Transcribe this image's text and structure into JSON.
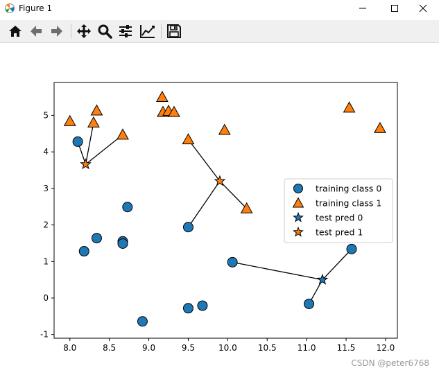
{
  "window": {
    "title": "Figure 1"
  },
  "toolbar": {
    "tools": [
      {
        "icon": "home-icon"
      },
      {
        "icon": "back-arrow-icon"
      },
      {
        "icon": "forward-arrow-icon"
      },
      {
        "icon": "pan-icon"
      },
      {
        "icon": "zoom-icon"
      },
      {
        "icon": "subplots-config-icon"
      },
      {
        "icon": "edit-axes-icon"
      },
      {
        "icon": "save-icon"
      }
    ]
  },
  "watermark": "CSDN @peter6768",
  "chart_data": {
    "type": "scatter",
    "xlim": [
      7.8,
      12.15
    ],
    "ylim": [
      -1.1,
      5.9
    ],
    "xticks": [
      "8.0",
      "8.5",
      "9.0",
      "9.5",
      "10.0",
      "10.5",
      "11.0",
      "11.5",
      "12.0"
    ],
    "yticks": [
      "-1",
      "0",
      "1",
      "2",
      "3",
      "4",
      "5"
    ],
    "grid": false,
    "legend": {
      "position": "center-right",
      "entries": [
        "training class 0",
        "training class 1",
        "test pred 0",
        "test pred 1"
      ]
    },
    "colors": {
      "class0": "#1f77b4",
      "class1": "#ff7f0e"
    },
    "series": [
      {
        "name": "training class 0",
        "marker": "circle",
        "color": "#1f77b4",
        "points": [
          [
            8.1,
            4.28
          ],
          [
            8.18,
            1.28
          ],
          [
            8.34,
            1.64
          ],
          [
            8.67,
            1.55
          ],
          [
            8.67,
            1.49
          ],
          [
            8.73,
            2.49
          ],
          [
            8.92,
            -0.64
          ],
          [
            9.5,
            1.94
          ],
          [
            9.5,
            -0.28
          ],
          [
            9.68,
            -0.21
          ],
          [
            10.06,
            0.98
          ],
          [
            11.03,
            -0.16
          ],
          [
            11.57,
            1.34
          ]
        ]
      },
      {
        "name": "training class 1",
        "marker": "triangle",
        "color": "#ff7f0e",
        "points": [
          [
            8.0,
            4.84
          ],
          [
            8.3,
            4.8
          ],
          [
            8.34,
            5.13
          ],
          [
            8.67,
            4.47
          ],
          [
            9.17,
            5.5
          ],
          [
            9.18,
            5.09
          ],
          [
            9.25,
            5.12
          ],
          [
            9.32,
            5.09
          ],
          [
            9.5,
            4.34
          ],
          [
            9.96,
            4.6
          ],
          [
            10.24,
            2.45
          ],
          [
            11.54,
            5.21
          ],
          [
            11.93,
            4.65
          ]
        ]
      },
      {
        "name": "test pred 0",
        "marker": "star",
        "color": "#1f77b4",
        "points": [
          [
            11.2,
            0.5
          ]
        ]
      },
      {
        "name": "test pred 1",
        "marker": "star",
        "color": "#ff7f0e",
        "points": [
          [
            8.2,
            3.66
          ],
          [
            9.9,
            3.2
          ]
        ]
      }
    ],
    "neighbor_lines": [
      [
        [
          8.2,
          3.66
        ],
        [
          8.1,
          4.28
        ]
      ],
      [
        [
          8.2,
          3.66
        ],
        [
          8.3,
          4.8
        ]
      ],
      [
        [
          8.2,
          3.66
        ],
        [
          8.67,
          4.47
        ]
      ],
      [
        [
          9.9,
          3.2
        ],
        [
          9.5,
          4.34
        ]
      ],
      [
        [
          9.9,
          3.2
        ],
        [
          10.24,
          2.45
        ]
      ],
      [
        [
          9.9,
          3.2
        ],
        [
          9.5,
          1.94
        ]
      ],
      [
        [
          11.2,
          0.5
        ],
        [
          10.06,
          0.98
        ]
      ],
      [
        [
          11.2,
          0.5
        ],
        [
          11.03,
          -0.16
        ]
      ],
      [
        [
          11.2,
          0.5
        ],
        [
          11.57,
          1.34
        ]
      ]
    ]
  }
}
